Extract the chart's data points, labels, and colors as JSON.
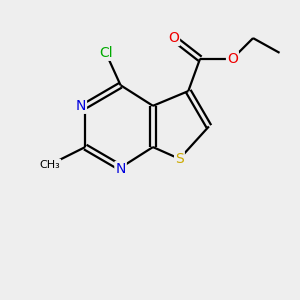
{
  "background_color": "#eeeeee",
  "atom_colors": {
    "C": "#000000",
    "N": "#0000dd",
    "S": "#ccaa00",
    "O": "#ee0000",
    "Cl": "#00aa00"
  },
  "figsize": [
    3.0,
    3.0
  ],
  "dpi": 100
}
